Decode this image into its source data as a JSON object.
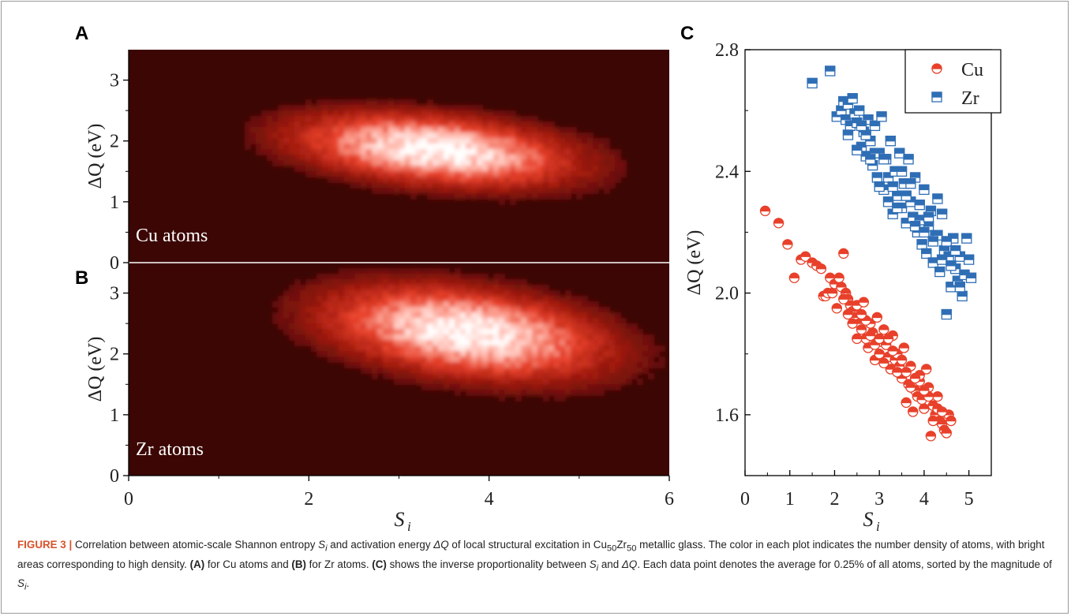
{
  "panels": {
    "A": {
      "label": "A",
      "annotation": "Cu atoms"
    },
    "B": {
      "label": "B",
      "annotation": "Zr atoms"
    },
    "C": {
      "label": "C"
    }
  },
  "caption": {
    "title": "FIGURE 3 |",
    "t1": " Correlation between atomic-scale Shannon entropy ",
    "s_i": "S",
    "sub_i": "i",
    "t2": " and activation energy ",
    "dq": "ΔQ",
    "t3": " of local structural excitation in Cu",
    "sub50a": "50",
    "zr": "Zr",
    "sub50b": "50",
    "t4": " metallic glass. The color in each plot indicates the number density of atoms, with bright areas corresponding to high density. ",
    "refA": "(A)",
    "t5": " for Cu atoms and ",
    "refB": "(B)",
    "t6": " for Zr atoms. ",
    "refC": "(C)",
    "t7": " shows the inverse proportionality between ",
    "t8": " and ",
    "t9": ". Each data point denotes the average for 0.25% of all atoms, sorted by the magnitude of ",
    "t10": "."
  },
  "chart_data": [
    {
      "type": "heatmap",
      "panel": "A",
      "xlim": [
        0,
        6
      ],
      "ylim": [
        0,
        3.5
      ],
      "x_ticks": [
        "0",
        "2",
        "4",
        "6"
      ],
      "y_ticks": [
        "0",
        "1",
        "2",
        "3"
      ],
      "ylabel": "ΔQ (eV)",
      "annotation": "Cu atoms",
      "density_peak": {
        "x": 3.4,
        "y": 1.85
      },
      "density_spread": {
        "x": 0.85,
        "y": 0.33
      },
      "colormap": [
        "#3b0603",
        "#a01a0e",
        "#e8402a",
        "#ffb3a6",
        "#ffffff"
      ]
    },
    {
      "type": "heatmap",
      "panel": "B",
      "xlim": [
        0,
        6
      ],
      "ylim": [
        0,
        3.5
      ],
      "x_ticks": [
        "0",
        "2",
        "4",
        "6"
      ],
      "y_ticks": [
        "0",
        "1",
        "2",
        "3"
      ],
      "ylabel": "ΔQ (eV)",
      "xlabel": "S",
      "xlabel_sub": "i",
      "annotation": "Zr atoms",
      "density_peak": {
        "x": 3.75,
        "y": 2.35
      },
      "density_spread": {
        "x": 0.85,
        "y": 0.42
      },
      "colormap": [
        "#3b0603",
        "#a01a0e",
        "#e8402a",
        "#ffb3a6",
        "#ffffff"
      ]
    },
    {
      "type": "scatter",
      "panel": "C",
      "xlim": [
        0,
        5.5
      ],
      "ylim": [
        1.4,
        2.8
      ],
      "x_ticks": [
        "0",
        "1",
        "2",
        "3",
        "4",
        "5"
      ],
      "y_ticks": [
        "1.6",
        "2.0",
        "2.4",
        "2.8"
      ],
      "xlabel": "S",
      "xlabel_sub": "i",
      "ylabel": "ΔQ (eV)",
      "legend_position": "top-right",
      "series": [
        {
          "name": "Cu",
          "color": "#e8402a",
          "marker": "half-filled-circle",
          "points": [
            [
              0.45,
              2.27
            ],
            [
              0.75,
              2.23
            ],
            [
              0.95,
              2.16
            ],
            [
              1.1,
              2.05
            ],
            [
              1.25,
              2.11
            ],
            [
              1.35,
              2.12
            ],
            [
              1.5,
              2.1
            ],
            [
              1.6,
              2.09
            ],
            [
              1.7,
              2.08
            ],
            [
              1.75,
              1.99
            ],
            [
              1.8,
              1.99
            ],
            [
              1.85,
              2.0
            ],
            [
              1.9,
              2.05
            ],
            [
              1.95,
              2.0
            ],
            [
              2.0,
              2.03
            ],
            [
              2.05,
              1.95
            ],
            [
              2.1,
              2.05
            ],
            [
              2.2,
              2.13
            ],
            [
              2.15,
              2.02
            ],
            [
              2.25,
              2.0
            ],
            [
              2.3,
              1.98
            ],
            [
              2.35,
              1.96
            ],
            [
              2.4,
              1.94
            ],
            [
              2.45,
              1.92
            ],
            [
              2.5,
              1.96
            ],
            [
              2.55,
              1.9
            ],
            [
              2.6,
              1.88
            ],
            [
              2.65,
              1.97
            ],
            [
              2.7,
              1.85
            ],
            [
              2.75,
              1.82
            ],
            [
              2.8,
              1.9
            ],
            [
              2.85,
              1.87
            ],
            [
              2.9,
              1.78
            ],
            [
              2.95,
              1.92
            ],
            [
              3.0,
              1.8
            ],
            [
              3.05,
              1.84
            ],
            [
              3.1,
              1.88
            ],
            [
              3.15,
              1.83
            ],
            [
              3.2,
              1.79
            ],
            [
              3.25,
              1.75
            ],
            [
              3.3,
              1.86
            ],
            [
              3.35,
              1.78
            ],
            [
              3.4,
              1.8
            ],
            [
              3.45,
              1.76
            ],
            [
              3.5,
              1.72
            ],
            [
              3.55,
              1.82
            ],
            [
              3.6,
              1.64
            ],
            [
              3.65,
              1.7
            ],
            [
              3.7,
              1.76
            ],
            [
              3.75,
              1.61
            ],
            [
              3.8,
              1.68
            ],
            [
              3.85,
              1.66
            ],
            [
              3.9,
              1.71
            ],
            [
              3.95,
              1.65
            ],
            [
              4.0,
              1.62
            ],
            [
              4.05,
              1.75
            ],
            [
              4.1,
              1.69
            ],
            [
              4.15,
              1.53
            ],
            [
              4.2,
              1.63
            ],
            [
              4.25,
              1.6
            ],
            [
              4.3,
              1.66
            ],
            [
              4.35,
              1.58
            ],
            [
              4.4,
              1.57
            ],
            [
              4.45,
              1.55
            ],
            [
              4.5,
              1.54
            ],
            [
              4.55,
              1.6
            ],
            [
              4.6,
              1.58
            ],
            [
              2.3,
              1.93
            ],
            [
              2.5,
              1.85
            ],
            [
              2.7,
              1.91
            ],
            [
              2.9,
              1.83
            ],
            [
              3.1,
              1.77
            ],
            [
              3.3,
              1.81
            ],
            [
              3.5,
              1.78
            ],
            [
              3.7,
              1.69
            ],
            [
              3.9,
              1.73
            ],
            [
              4.1,
              1.66
            ],
            [
              4.3,
              1.62
            ],
            [
              2.2,
              1.98
            ],
            [
              2.4,
              1.9
            ],
            [
              2.6,
              1.93
            ],
            [
              2.8,
              1.86
            ],
            [
              3.0,
              1.85
            ],
            [
              3.2,
              1.85
            ],
            [
              3.4,
              1.74
            ],
            [
              3.6,
              1.74
            ],
            [
              3.8,
              1.72
            ],
            [
              4.0,
              1.68
            ],
            [
              4.2,
              1.58
            ],
            [
              4.4,
              1.61
            ]
          ]
        },
        {
          "name": "Zr",
          "color": "#2f6eb5",
          "marker": "half-filled-square",
          "points": [
            [
              1.5,
              2.69
            ],
            [
              1.9,
              2.73
            ],
            [
              2.05,
              2.58
            ],
            [
              2.15,
              2.6
            ],
            [
              2.2,
              2.63
            ],
            [
              2.25,
              2.57
            ],
            [
              2.3,
              2.62
            ],
            [
              2.35,
              2.55
            ],
            [
              2.4,
              2.64
            ],
            [
              2.45,
              2.59
            ],
            [
              2.5,
              2.56
            ],
            [
              2.55,
              2.6
            ],
            [
              2.6,
              2.48
            ],
            [
              2.65,
              2.53
            ],
            [
              2.7,
              2.45
            ],
            [
              2.75,
              2.57
            ],
            [
              2.8,
              2.5
            ],
            [
              2.85,
              2.42
            ],
            [
              2.9,
              2.55
            ],
            [
              2.95,
              2.38
            ],
            [
              3.0,
              2.46
            ],
            [
              3.05,
              2.58
            ],
            [
              3.1,
              2.34
            ],
            [
              3.15,
              2.44
            ],
            [
              3.2,
              2.38
            ],
            [
              3.25,
              2.5
            ],
            [
              3.3,
              2.26
            ],
            [
              3.35,
              2.4
            ],
            [
              3.4,
              2.32
            ],
            [
              3.45,
              2.46
            ],
            [
              3.5,
              2.28
            ],
            [
              3.55,
              2.36
            ],
            [
              3.6,
              2.23
            ],
            [
              3.65,
              2.44
            ],
            [
              3.7,
              2.3
            ],
            [
              3.75,
              2.25
            ],
            [
              3.8,
              2.38
            ],
            [
              3.85,
              2.2
            ],
            [
              3.9,
              2.29
            ],
            [
              3.95,
              2.16
            ],
            [
              4.0,
              2.34
            ],
            [
              4.05,
              2.13
            ],
            [
              4.1,
              2.22
            ],
            [
              4.15,
              2.27
            ],
            [
              4.2,
              2.1
            ],
            [
              4.25,
              2.19
            ],
            [
              4.3,
              2.31
            ],
            [
              4.35,
              2.07
            ],
            [
              4.4,
              2.26
            ],
            [
              4.45,
              2.14
            ],
            [
              4.5,
              1.93
            ],
            [
              4.55,
              2.12
            ],
            [
              4.6,
              2.02
            ],
            [
              4.65,
              2.18
            ],
            [
              4.7,
              2.08
            ],
            [
              4.75,
              2.04
            ],
            [
              4.8,
              2.12
            ],
            [
              4.85,
              1.99
            ],
            [
              4.9,
              2.06
            ],
            [
              4.95,
              2.18
            ],
            [
              5.0,
              2.11
            ],
            [
              5.05,
              2.05
            ],
            [
              2.3,
              2.52
            ],
            [
              2.5,
              2.47
            ],
            [
              2.7,
              2.52
            ],
            [
              2.9,
              2.46
            ],
            [
              3.1,
              2.44
            ],
            [
              3.3,
              2.35
            ],
            [
              3.5,
              2.4
            ],
            [
              3.7,
              2.36
            ],
            [
              3.9,
              2.24
            ],
            [
              4.1,
              2.25
            ],
            [
              4.3,
              2.19
            ],
            [
              4.5,
              2.17
            ],
            [
              4.7,
              2.14
            ],
            [
              2.6,
              2.55
            ],
            [
              2.8,
              2.44
            ],
            [
              3.0,
              2.35
            ],
            [
              3.2,
              2.3
            ],
            [
              3.4,
              2.28
            ],
            [
              3.6,
              2.32
            ],
            [
              3.8,
              2.22
            ],
            [
              4.0,
              2.2
            ],
            [
              4.2,
              2.17
            ],
            [
              4.4,
              2.11
            ],
            [
              4.6,
              2.09
            ],
            [
              4.8,
              2.02
            ]
          ]
        }
      ]
    }
  ]
}
